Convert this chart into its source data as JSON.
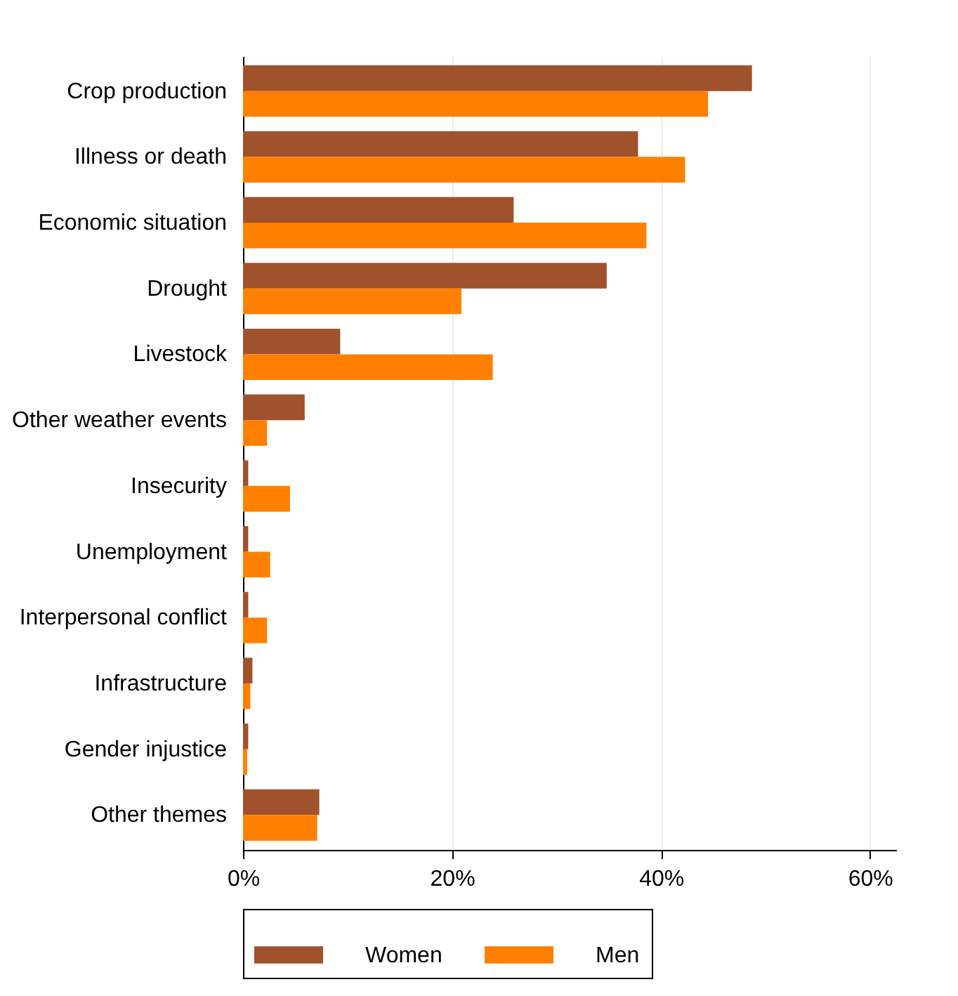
{
  "chart_data": {
    "type": "bar",
    "orientation": "horizontal",
    "categories": [
      "Crop production",
      "Illness or death",
      "Economic situation",
      "Drought",
      "Livestock",
      "Other weather events",
      "Insecurity",
      "Unemployment",
      "Interpersonal conflict",
      "Infrastructure",
      "Gender injustice",
      "Other themes"
    ],
    "series": [
      {
        "name": "Women",
        "color": "#a0522d",
        "values": [
          48.7,
          37.8,
          25.9,
          34.8,
          9.3,
          5.9,
          0.5,
          0.5,
          0.5,
          0.9,
          0.5,
          7.3
        ]
      },
      {
        "name": "Men",
        "color": "#ff8000",
        "values": [
          44.5,
          42.3,
          38.6,
          20.9,
          23.9,
          2.3,
          4.5,
          2.6,
          2.3,
          0.7,
          0.4,
          7.1
        ]
      }
    ],
    "xlim": [
      0,
      62.5
    ],
    "xticks": [
      {
        "value": 0,
        "label": "0%"
      },
      {
        "value": 20,
        "label": "20%"
      },
      {
        "value": 40,
        "label": "40%"
      },
      {
        "value": 60,
        "label": "60%"
      }
    ],
    "grid": "x",
    "legend": "bottom"
  }
}
